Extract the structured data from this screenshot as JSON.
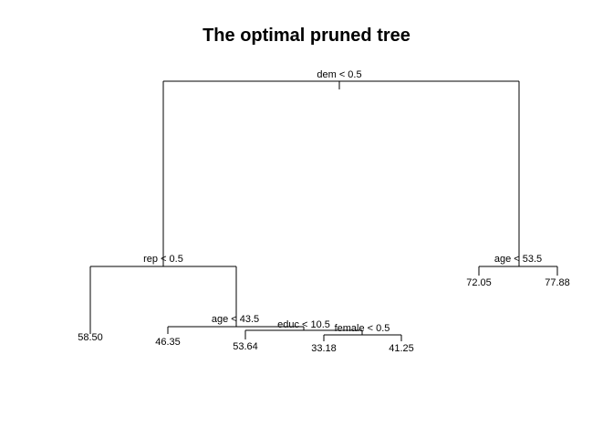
{
  "title": "The optimal pruned tree",
  "splits": {
    "root": "dem < 0.5",
    "rep": "rep < 0.5",
    "age_right": "age < 53.5",
    "age_left": "age < 43.5",
    "educ": "educ < 10.5",
    "female": "female < 0.5"
  },
  "leaves": {
    "l1": "58.50",
    "l2": "46.35",
    "l3": "53.64",
    "l4": "33.18",
    "l5": "41.25",
    "r1": "72.05",
    "r2": "77.88"
  }
}
